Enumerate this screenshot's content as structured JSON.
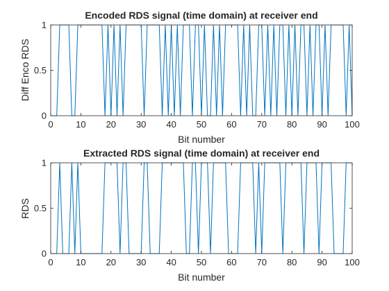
{
  "chart_data": [
    {
      "type": "line",
      "title": "Encoded RDS signal (time domain) at receiver end",
      "xlabel": "Bit number",
      "ylabel": "Diff Enco RDS",
      "xlim": [
        0,
        100
      ],
      "ylim": [
        0,
        1
      ],
      "xticks": [
        "0",
        "10",
        "20",
        "30",
        "40",
        "50",
        "60",
        "70",
        "80",
        "90",
        "100"
      ],
      "yticks": [
        "0",
        "0.5",
        "1"
      ],
      "grid": false,
      "line_color": "#0072BD",
      "series": [
        {
          "x": [
            0,
            1,
            2,
            3,
            4,
            5,
            6,
            7,
            8,
            9,
            10,
            11,
            12,
            13,
            14,
            15,
            16,
            17,
            18,
            19,
            20,
            21,
            22,
            23,
            24,
            25,
            26,
            27,
            28,
            29,
            30,
            31,
            32,
            33,
            34,
            35,
            36,
            37,
            38,
            39,
            40,
            41,
            42,
            43,
            44,
            45,
            46,
            47,
            48,
            49,
            50,
            51,
            52,
            53,
            54,
            55,
            56,
            57,
            58,
            59,
            60,
            61,
            62,
            63,
            64,
            65,
            66,
            67,
            68,
            69,
            70,
            71,
            72,
            73,
            74,
            75,
            76,
            77,
            78,
            79,
            80,
            81,
            82,
            83,
            84,
            85,
            86,
            87,
            88,
            89,
            90,
            91,
            92,
            93,
            94,
            95,
            96,
            97,
            98,
            99,
            100
          ],
          "y": [
            0,
            0,
            0,
            1,
            1,
            1,
            1,
            0,
            0,
            1,
            1,
            1,
            1,
            1,
            1,
            1,
            1,
            1,
            0,
            1,
            0,
            1,
            0,
            1,
            0,
            1,
            1,
            1,
            1,
            1,
            1,
            0,
            1,
            1,
            1,
            1,
            1,
            0,
            1,
            0,
            1,
            0,
            1,
            0,
            1,
            1,
            1,
            0,
            1,
            1,
            0,
            1,
            0,
            0,
            1,
            0,
            1,
            0,
            1,
            1,
            1,
            1,
            1,
            0,
            1,
            0,
            1,
            0,
            0,
            1,
            1,
            0,
            1,
            0,
            1,
            0,
            1,
            1,
            0,
            1,
            0,
            1,
            0,
            1,
            1,
            0,
            1,
            0,
            1,
            1,
            0,
            1,
            0,
            1,
            1,
            1,
            1,
            1,
            0,
            1,
            0
          ]
        }
      ]
    },
    {
      "type": "line",
      "title": "Extracted RDS signal (time domain) at receiver end",
      "xlabel": "Bit number",
      "ylabel": "RDS",
      "xlim": [
        0,
        100
      ],
      "ylim": [
        0,
        1
      ],
      "xticks": [
        "0",
        "10",
        "20",
        "30",
        "40",
        "50",
        "60",
        "70",
        "80",
        "90",
        "100"
      ],
      "yticks": [
        "0",
        "0.5",
        "1"
      ],
      "grid": false,
      "line_color": "#0072BD",
      "series": [
        {
          "x": [
            0,
            1,
            2,
            3,
            4,
            5,
            6,
            7,
            8,
            9,
            10,
            11,
            12,
            13,
            14,
            15,
            16,
            17,
            18,
            19,
            20,
            21,
            22,
            23,
            24,
            25,
            26,
            27,
            28,
            29,
            30,
            31,
            32,
            33,
            34,
            35,
            36,
            37,
            38,
            39,
            40,
            41,
            42,
            43,
            44,
            45,
            46,
            47,
            48,
            49,
            50,
            51,
            52,
            53,
            54,
            55,
            56,
            57,
            58,
            59,
            60,
            61,
            62,
            63,
            64,
            65,
            66,
            67,
            68,
            69,
            70,
            71,
            72,
            73,
            74,
            75,
            76,
            77,
            78,
            79,
            80,
            81,
            82,
            83,
            84,
            85,
            86,
            87,
            88,
            89,
            90,
            91,
            92,
            93,
            94,
            95,
            96,
            97,
            98,
            99,
            100
          ],
          "y": [
            0,
            0,
            0,
            1,
            0,
            0,
            0,
            1,
            0,
            1,
            0,
            0,
            0,
            0,
            0,
            0,
            0,
            0,
            1,
            1,
            1,
            1,
            1,
            0,
            1,
            1,
            0,
            0,
            0,
            0,
            0,
            1,
            1,
            0,
            0,
            0,
            0,
            1,
            1,
            1,
            1,
            1,
            1,
            1,
            1,
            0,
            0,
            1,
            1,
            0,
            1,
            1,
            1,
            0,
            1,
            1,
            1,
            1,
            1,
            0,
            0,
            0,
            0,
            1,
            1,
            1,
            1,
            1,
            0,
            1,
            0,
            1,
            1,
            1,
            1,
            1,
            1,
            0,
            1,
            1,
            1,
            1,
            1,
            1,
            0,
            1,
            1,
            1,
            1,
            0,
            1,
            1,
            1,
            1,
            0,
            0,
            0,
            0,
            1,
            1,
            1
          ]
        }
      ]
    }
  ]
}
